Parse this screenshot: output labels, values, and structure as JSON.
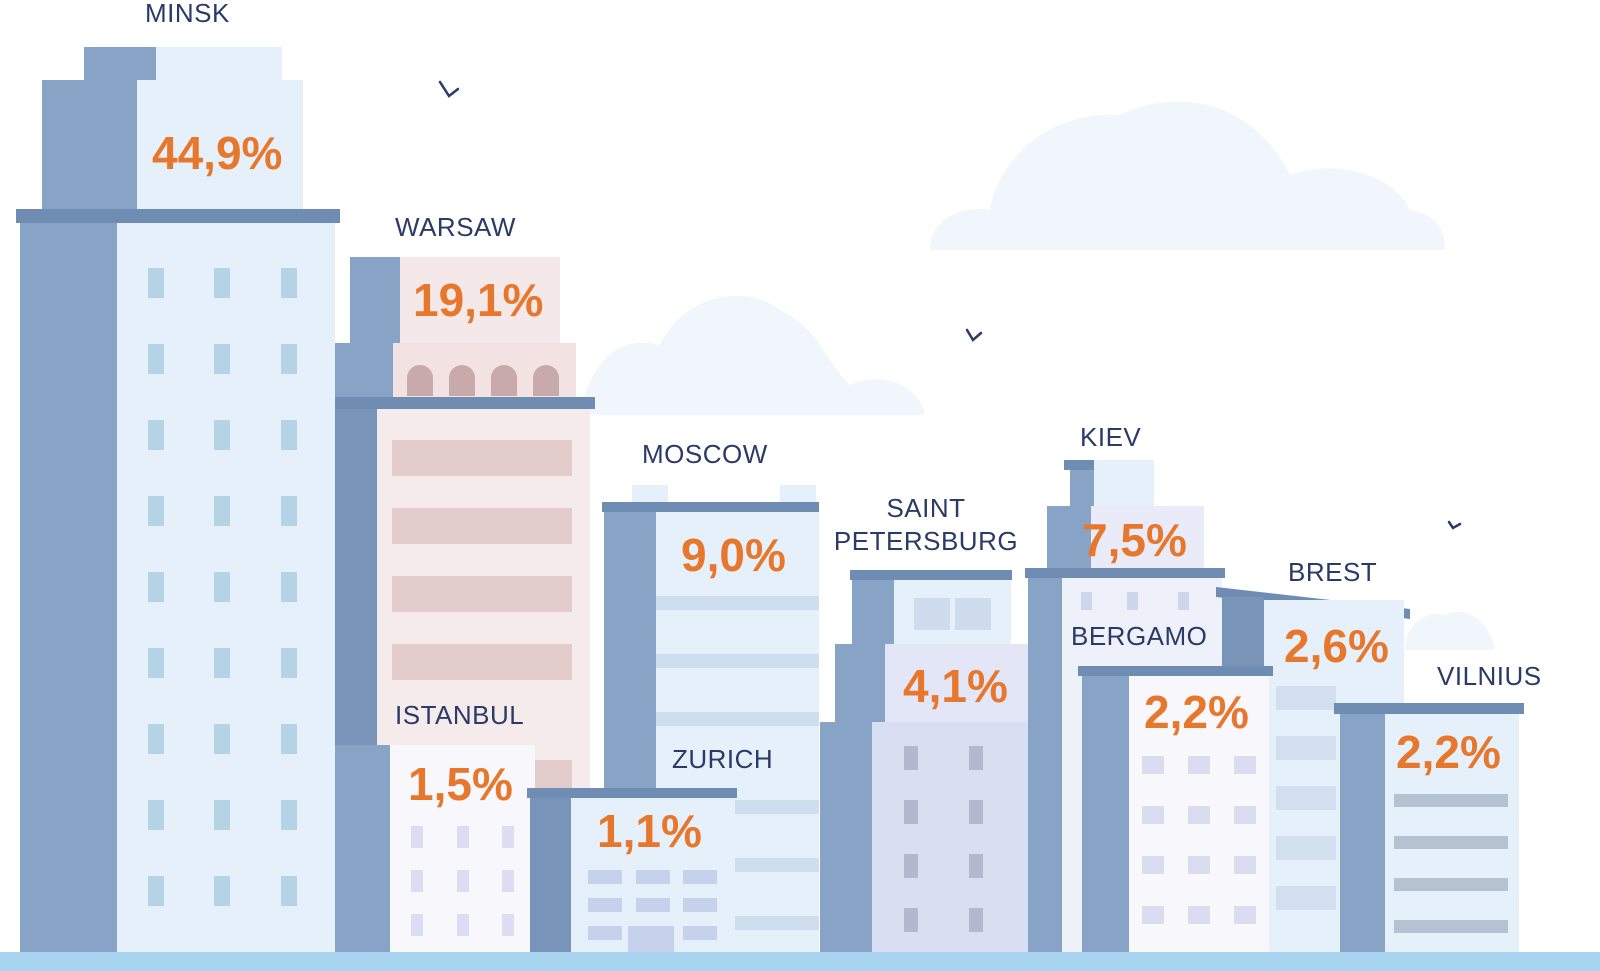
{
  "colors": {
    "label": "#2b3a67",
    "value": "#e8772e",
    "building_dark": "#87a3c6",
    "building_light": "#e6f0fa",
    "ground": "#a9d4ef"
  },
  "cities": [
    {
      "id": "minsk",
      "name": "MINSK",
      "value": "44,9%"
    },
    {
      "id": "warsaw",
      "name": "WARSAW",
      "value": "19,1%"
    },
    {
      "id": "moscow",
      "name": "MOSCOW",
      "value": "9,0%"
    },
    {
      "id": "kiev",
      "name": "KIEV",
      "value": "7,5%"
    },
    {
      "id": "saint-petersburg",
      "name_lines": [
        "SAINT",
        "PETERSBURG"
      ],
      "value": "4,1%"
    },
    {
      "id": "brest",
      "name": "BREST",
      "value": "2,6%"
    },
    {
      "id": "bergamo",
      "name": "BERGAMO",
      "value": "2,2%"
    },
    {
      "id": "vilnius",
      "name": "VILNIUS",
      "value": "2,2%"
    },
    {
      "id": "istanbul",
      "name": "ISTANBUL",
      "value": "1,5%"
    },
    {
      "id": "zurich",
      "name": "ZURICH",
      "value": "1,1%"
    }
  ]
}
